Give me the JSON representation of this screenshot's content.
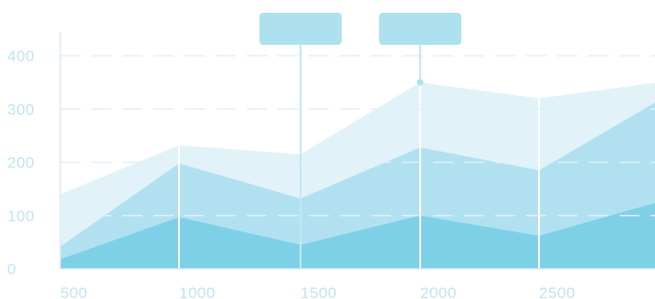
{
  "chart_data": {
    "type": "area",
    "stacked": false,
    "x": [
      500,
      1000,
      1500,
      2000,
      2500,
      3000
    ],
    "x_ticks": [
      "500",
      "1000",
      "1500",
      "2000",
      "2500"
    ],
    "y_ticks": [
      "0",
      "100",
      "200",
      "300",
      "400"
    ],
    "xlim": [
      500,
      3000
    ],
    "ylim": [
      0,
      400
    ],
    "grid": "dashed horizontal lines",
    "series": [
      {
        "values": [
          140,
          232,
          215,
          350,
          320,
          350
        ],
        "color": "#e2f2f9"
      },
      {
        "values": [
          42,
          198,
          132,
          228,
          185,
          315
        ],
        "color": "#b1e1f0"
      },
      {
        "values": [
          18,
          97,
          45,
          100,
          62,
          125
        ],
        "color": "#7ed0e7"
      }
    ],
    "tooltip_boxes": [
      {
        "at_x": 1500,
        "text": ""
      },
      {
        "at_x": 2000,
        "text": ""
      }
    ],
    "colors": {
      "axis": "#dcebf2",
      "tick_label": "#bfe4f1",
      "grid": "#e0f0f7",
      "tooltip": "#ade1ee",
      "divider": "#ffffff",
      "crosshair_line": "#ade1ee"
    }
  }
}
